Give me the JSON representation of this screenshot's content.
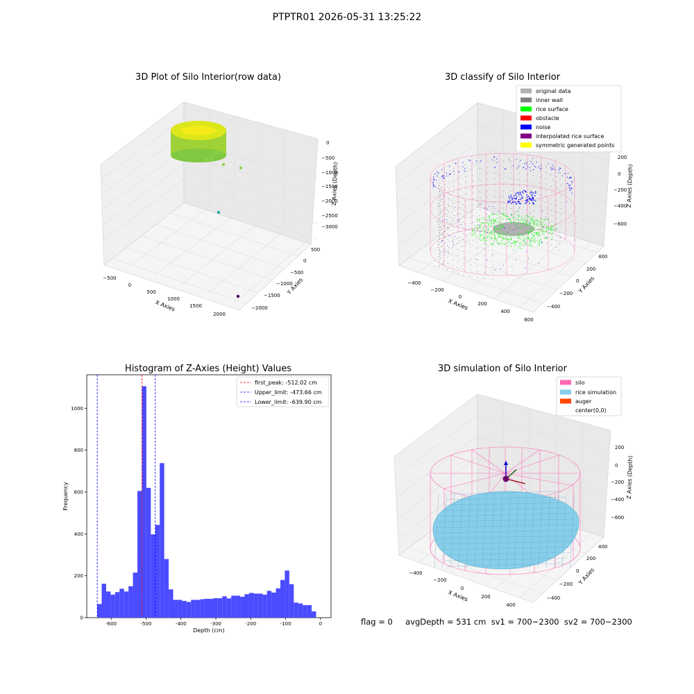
{
  "figure": {
    "suptitle": "PTPTR01 2026-05-31 13:25:22",
    "footer": "flag = 0     avgDepth = 531 cm  sv1 = 700~2300  sv2 = 700~2300"
  },
  "colors": {
    "histogram_bar": "#4b4bff",
    "first_peak_line": "#ff0000",
    "limit_lines": "#0000ff",
    "silo_wire": "#ff69b4",
    "rice_surface": "#87ceeb",
    "inner_wall": "#808080",
    "noise": "#0000ff",
    "green": "#00ff00"
  },
  "chart_data": [
    {
      "type": "scatter",
      "projection": "3d",
      "title": "3D Plot of Silo Interior(row data)",
      "xlabel": "X Axies",
      "ylabel": "Y Axies",
      "zlabel": "Z Axies (Depth)",
      "x_ticks": [
        "−500",
        "0",
        "500",
        "1000",
        "1500",
        "2000"
      ],
      "y_ticks": [
        "500",
        "0",
        "−500",
        "−1000",
        "−1500",
        "−2000"
      ],
      "z_ticks": [
        "0",
        "−500",
        "−1000",
        "−1500",
        "−2000",
        "−2500",
        "−3000"
      ],
      "xlim": [
        -600,
        2100
      ],
      "ylim": [
        -2200,
        700
      ],
      "zlim": [
        -3300,
        100
      ],
      "outlier_points": [
        {
          "x": 700,
          "y": -300,
          "z": -700,
          "color": "#8fd14f"
        },
        {
          "x": 1050,
          "y": -350,
          "z": -800,
          "color": "#8fd14f"
        },
        {
          "x": 900,
          "y": -900,
          "z": -2400,
          "color": "#2ca4a0"
        },
        {
          "x": 2000,
          "y": -2000,
          "z": -3200,
          "color": "#440154"
        }
      ]
    },
    {
      "type": "scatter",
      "projection": "3d",
      "title": "3D classify of Silo Interior",
      "xlabel": "X Axies",
      "ylabel": "Y Axies",
      "zlabel": "Z Axies (Depth)",
      "x_ticks": [
        "−400",
        "−200",
        "0",
        "200",
        "400",
        "600"
      ],
      "y_ticks": [
        "400",
        "200",
        "0",
        "−200",
        "−400"
      ],
      "z_ticks": [
        "200",
        "0",
        "−200",
        "−400",
        "−600"
      ],
      "legend": [
        {
          "label": "original data",
          "color": "#b0b0b0"
        },
        {
          "label": "inner wall",
          "color": "#808080"
        },
        {
          "label": "rice surface",
          "color": "#00ff00"
        },
        {
          "label": "obstacle",
          "color": "#ff0000"
        },
        {
          "label": "noise",
          "color": "#0000ff"
        },
        {
          "label": "interpolated rice surface",
          "color": "#800080"
        },
        {
          "label": "symmetric generated points",
          "color": "#ffff00"
        }
      ],
      "legend_loc": "upper right"
    },
    {
      "type": "bar",
      "title": "Histogram of Z-Axies (Height) Values",
      "xlabel": "Depth (cm)",
      "ylabel": "Frequency",
      "xlim": [
        -670,
        30
      ],
      "ylim": [
        0,
        1160
      ],
      "x_ticks": [
        -600,
        -500,
        -400,
        -300,
        -200,
        -100,
        0
      ],
      "y_ticks": [
        0,
        200,
        400,
        600,
        800,
        1000
      ],
      "bin_start": -640,
      "bin_width": 12.8,
      "values": [
        65,
        162,
        125,
        110,
        122,
        138,
        125,
        150,
        215,
        605,
        1105,
        620,
        398,
        443,
        738,
        280,
        135,
        85,
        85,
        80,
        75,
        85,
        85,
        88,
        90,
        90,
        93,
        93,
        102,
        92,
        105,
        105,
        100,
        112,
        118,
        115,
        115,
        110,
        128,
        120,
        140,
        180,
        225,
        160,
        72,
        68,
        60,
        60,
        30
      ],
      "vlines": [
        {
          "label": "first_peak: -512.02 cm",
          "x": -512.02,
          "color": "#ff0000"
        },
        {
          "label": "Upper_limit: -473.66 cm",
          "x": -473.66,
          "color": "#0000ff"
        },
        {
          "label": "Lower_limit: -639.90 cm",
          "x": -639.9,
          "color": "#0000ff"
        }
      ],
      "legend_loc": "upper right"
    },
    {
      "type": "surface",
      "projection": "3d",
      "title": "3D simulation of Silo Interior",
      "xlabel": "X Axies",
      "ylabel": "Y Axies",
      "zlabel": "Z Axies (Depth)",
      "x_ticks": [
        "−400",
        "−200",
        "0",
        "200",
        "400"
      ],
      "y_ticks": [
        "400",
        "200",
        "0",
        "−200",
        "−400"
      ],
      "z_ticks": [
        "200",
        "0",
        "−200",
        "−400",
        "−600"
      ],
      "legend": [
        {
          "label": "silo",
          "color": "#ff69b4"
        },
        {
          "label": "rice simulation",
          "color": "#87ceeb"
        },
        {
          "label": "auger",
          "color": "#ff4500"
        },
        {
          "label": "center(0,0)",
          "color": "#ffffff"
        }
      ],
      "legend_loc": "upper right"
    }
  ]
}
